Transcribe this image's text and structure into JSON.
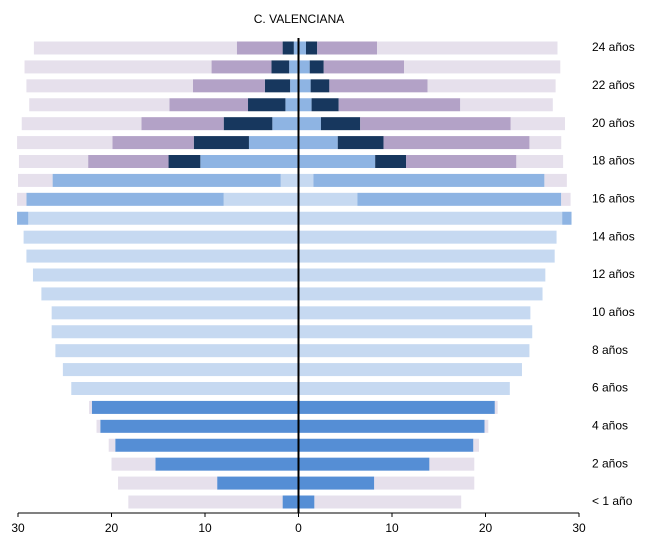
{
  "chart_data": {
    "type": "pyramid",
    "title": "C. VALENCIANA",
    "categories": [
      "< 1 año",
      null,
      "2 años",
      null,
      "4 años",
      null,
      "6 años",
      null,
      "8 años",
      null,
      "10 años",
      null,
      "12 años",
      null,
      "14 años",
      null,
      "16 años",
      null,
      "18 años",
      null,
      "20 años",
      null,
      "22 años",
      null,
      "24 años"
    ],
    "xlim": [
      -30,
      30
    ],
    "xticks": [
      {
        "value": -30,
        "label": "30"
      },
      {
        "value": -20,
        "label": "20"
      },
      {
        "value": -10,
        "label": "10"
      },
      0,
      10,
      20,
      30
    ],
    "series": [
      {
        "color": "#558ed5",
        "left": [
          1.7,
          8.7,
          15.3,
          19.6,
          21.2,
          22.1,
          null,
          null,
          null,
          null,
          null,
          null,
          null,
          null,
          null,
          null,
          null,
          null,
          null,
          null,
          null,
          null,
          null,
          null,
          null
        ],
        "right": [
          1.7,
          8.1,
          14.0,
          18.7,
          19.9,
          21.0,
          null,
          null,
          null,
          null,
          null,
          null,
          null,
          null,
          null,
          null,
          null,
          null,
          null,
          null,
          null,
          null,
          null,
          null,
          null
        ]
      },
      {
        "color": "#c6d9f1",
        "left": [
          null,
          null,
          null,
          null,
          null,
          null,
          24.3,
          25.2,
          26.0,
          26.4,
          26.4,
          27.5,
          28.4,
          29.1,
          29.4,
          28.9,
          8.0,
          1.9,
          null,
          null,
          null,
          null,
          null,
          null,
          null
        ],
        "right": [
          null,
          null,
          null,
          null,
          null,
          null,
          22.6,
          23.9,
          24.7,
          25.0,
          24.8,
          26.1,
          26.4,
          27.4,
          27.6,
          28.2,
          6.3,
          1.6,
          null,
          null,
          null,
          null,
          null,
          null,
          null
        ]
      },
      {
        "color": "#8eb4e3",
        "left": [
          null,
          null,
          null,
          null,
          null,
          null,
          null,
          null,
          null,
          null,
          null,
          null,
          null,
          null,
          null,
          1.2,
          21.1,
          24.4,
          10.5,
          5.3,
          2.8,
          1.4,
          0.9,
          1.0,
          0.5
        ],
        "right": [
          null,
          null,
          null,
          null,
          null,
          null,
          null,
          null,
          null,
          null,
          null,
          null,
          null,
          null,
          null,
          1.0,
          21.8,
          24.7,
          8.2,
          4.2,
          2.4,
          1.4,
          1.3,
          1.2,
          0.8
        ]
      },
      {
        "color": "#17375e",
        "left": [
          null,
          null,
          null,
          null,
          null,
          null,
          null,
          null,
          null,
          null,
          null,
          null,
          null,
          null,
          null,
          null,
          null,
          null,
          3.4,
          5.9,
          5.2,
          4.0,
          2.7,
          1.9,
          1.2
        ],
        "right": [
          null,
          null,
          null,
          null,
          null,
          null,
          null,
          null,
          null,
          null,
          null,
          null,
          null,
          null,
          null,
          null,
          null,
          null,
          3.3,
          4.9,
          4.2,
          2.9,
          2.0,
          1.5,
          1.2
        ]
      },
      {
        "color": "#b3a2c7",
        "left": [
          null,
          null,
          null,
          null,
          null,
          null,
          null,
          null,
          null,
          null,
          null,
          null,
          null,
          null,
          null,
          null,
          null,
          null,
          8.6,
          8.7,
          8.8,
          8.4,
          7.7,
          6.4,
          4.9
        ],
        "right": [
          null,
          null,
          null,
          null,
          null,
          null,
          null,
          null,
          null,
          null,
          null,
          null,
          null,
          null,
          null,
          null,
          null,
          null,
          11.8,
          15.6,
          16.1,
          13.0,
          10.5,
          8.6,
          6.4
        ]
      },
      {
        "color": "#e6e0ec",
        "left": [
          16.5,
          10.6,
          4.7,
          0.7,
          0.4,
          0.3,
          null,
          null,
          null,
          null,
          null,
          null,
          null,
          null,
          null,
          null,
          1.0,
          3.7,
          7.4,
          10.2,
          12.8,
          15.0,
          17.8,
          20.0,
          21.7
        ],
        "right": [
          15.7,
          10.7,
          4.8,
          0.6,
          0.4,
          0.3,
          null,
          null,
          null,
          null,
          null,
          null,
          null,
          null,
          null,
          null,
          1.0,
          2.4,
          5.0,
          3.4,
          5.8,
          9.9,
          13.7,
          16.7,
          19.3
        ]
      }
    ]
  }
}
